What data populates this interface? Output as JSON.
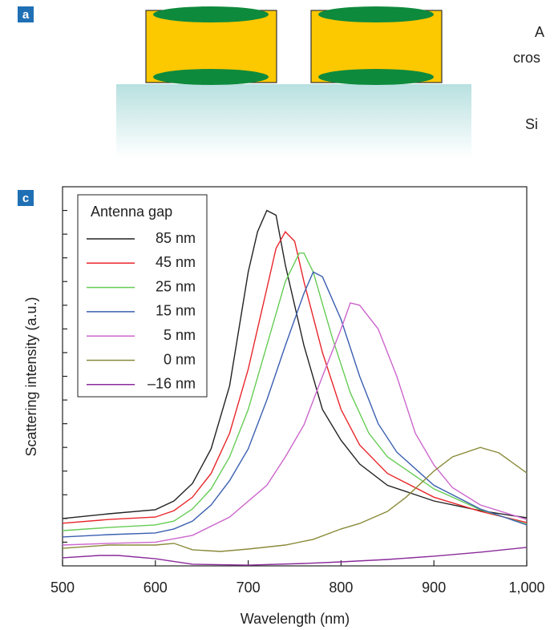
{
  "panel_a": {
    "label": "a",
    "texts": [
      "A",
      "cros",
      "Si"
    ]
  },
  "chart_data": {
    "type": "line",
    "panel_label": "c",
    "xlabel": "Wavelength (nm)",
    "ylabel": "Scattering intensity (a.u.)",
    "legend_title": "Antenna gap",
    "legend": "upper left",
    "xlim": [
      500,
      1000
    ],
    "xticks": [
      500,
      600,
      700,
      800,
      900,
      {
        "value": 1000,
        "label": "1,000"
      }
    ],
    "ylim": [
      0,
      16
    ],
    "yticks": [
      1,
      2,
      3,
      4,
      5,
      6,
      7,
      8,
      9,
      10,
      11,
      12,
      13,
      14,
      15
    ],
    "series": [
      {
        "name": "85 nm",
        "color": "#222222",
        "x": [
          500,
          550,
          600,
          620,
          640,
          660,
          680,
          700,
          710,
          720,
          730,
          740,
          760,
          780,
          800,
          820,
          850,
          900,
          950,
          1000
        ],
        "values": [
          2.0,
          2.2,
          2.37,
          2.74,
          3.48,
          4.94,
          7.6,
          12.4,
          14.1,
          15.0,
          14.8,
          12.7,
          9.3,
          6.6,
          5.3,
          4.3,
          3.4,
          2.74,
          2.33,
          2.03
        ]
      },
      {
        "name": "45 nm",
        "color": "#e8262b",
        "x": [
          500,
          550,
          600,
          620,
          640,
          660,
          680,
          700,
          720,
          730,
          740,
          750,
          760,
          780,
          800,
          820,
          850,
          900,
          950,
          1000
        ],
        "values": [
          1.8,
          1.96,
          2.06,
          2.33,
          2.9,
          3.9,
          5.6,
          8.3,
          11.7,
          13.4,
          14.1,
          13.7,
          12.0,
          9.0,
          6.6,
          5.1,
          3.9,
          2.9,
          2.3,
          1.83
        ]
      },
      {
        "name": "25 nm",
        "color": "#66cc55",
        "x": [
          500,
          550,
          600,
          620,
          640,
          660,
          680,
          700,
          720,
          740,
          755,
          760,
          770,
          790,
          810,
          830,
          850,
          900,
          950,
          1000
        ],
        "values": [
          1.49,
          1.62,
          1.73,
          1.89,
          2.4,
          3.25,
          4.6,
          6.6,
          9.3,
          12.0,
          13.2,
          13.2,
          12.4,
          9.7,
          7.3,
          5.6,
          4.6,
          3.25,
          2.37,
          1.76
        ]
      },
      {
        "name": "15 nm",
        "color": "#3a5fb0",
        "x": [
          500,
          550,
          600,
          620,
          640,
          660,
          680,
          700,
          720,
          740,
          760,
          770,
          780,
          800,
          820,
          840,
          860,
          900,
          950,
          1000
        ],
        "values": [
          1.22,
          1.32,
          1.39,
          1.56,
          1.89,
          2.57,
          3.6,
          4.94,
          7.0,
          9.3,
          11.5,
          12.4,
          12.2,
          10.4,
          8.0,
          6.0,
          4.8,
          3.4,
          2.4,
          1.73
        ]
      },
      {
        "name": "5 nm",
        "color": "#cc66cc",
        "x": [
          500,
          550,
          600,
          640,
          680,
          720,
          740,
          760,
          780,
          800,
          810,
          820,
          840,
          860,
          880,
          900,
          920,
          950,
          1000
        ],
        "values": [
          0.88,
          0.95,
          1.0,
          1.29,
          2.06,
          3.4,
          4.6,
          5.95,
          8.0,
          10.0,
          11.1,
          11.0,
          10.0,
          8.0,
          5.6,
          4.26,
          3.3,
          2.57,
          1.96
        ]
      },
      {
        "name": "0 nm",
        "color": "#8a8a3a",
        "x": [
          500,
          550,
          600,
          620,
          640,
          670,
          700,
          740,
          770,
          800,
          820,
          850,
          870,
          900,
          920,
          950,
          970,
          1000
        ],
        "values": [
          0.74,
          0.88,
          0.88,
          0.95,
          0.68,
          0.61,
          0.71,
          0.88,
          1.12,
          1.56,
          1.79,
          2.3,
          2.9,
          4.0,
          4.6,
          5.0,
          4.77,
          3.92
        ]
      },
      {
        "name": "–16 nm",
        "color": "#8a2a9a",
        "x": [
          500,
          540,
          560,
          600,
          640,
          700,
          760,
          800,
          850,
          900,
          950,
          1000
        ],
        "values": [
          0.34,
          0.44,
          0.44,
          0.3,
          0.07,
          0.03,
          0.1,
          0.17,
          0.27,
          0.41,
          0.58,
          0.78
        ]
      }
    ]
  }
}
